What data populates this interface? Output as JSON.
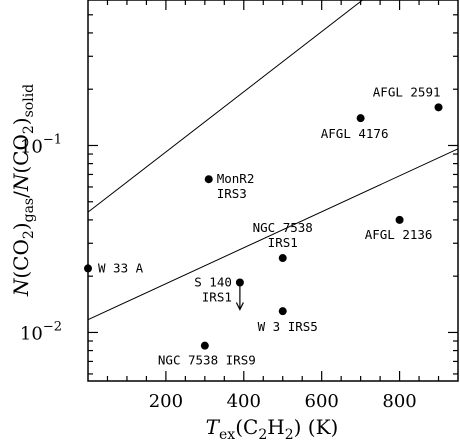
{
  "chart_data": {
    "type": "scatter",
    "title": "",
    "x_axis": {
      "label_main": "T",
      "label_sub": "ex",
      "label_tail_a": "(C",
      "label_tail_sub": "2",
      "label_tail_b": "H",
      "label_tail_sub2": "2",
      "label_tail_c": ")  (K)",
      "lim": [
        0,
        950
      ],
      "ticks": [
        200,
        400,
        600,
        800
      ],
      "tick_labels": [
        "200",
        "400",
        "600",
        "800"
      ],
      "scale": "linear"
    },
    "y_axis": {
      "label_parts": [
        "N",
        "(CO",
        "2",
        ")",
        "gas",
        "/",
        "N",
        "(CO",
        "2",
        ")",
        "solid"
      ],
      "lim": [
        0.0055,
        0.6
      ],
      "scale": "log",
      "major_ticks": [
        0.01,
        0.1
      ],
      "major_tick_labels": [
        {
          "base": "10",
          "exp": "−2"
        },
        {
          "base": "10",
          "exp": "−1"
        }
      ]
    },
    "points": [
      {
        "name": "W 33 A",
        "x": 0,
        "y": 0.022
      },
      {
        "name": "MonR2 IRS3",
        "x": 310,
        "y": 0.066
      },
      {
        "name": "NGC 7538 IRS1",
        "x": 500,
        "y": 0.025
      },
      {
        "name": "S 140 IRS1",
        "x": 390,
        "y": 0.0185,
        "upper_limit": true
      },
      {
        "name": "W 3 IRS5",
        "x": 500,
        "y": 0.013
      },
      {
        "name": "NGC 7538 IRS9",
        "x": 300,
        "y": 0.0085
      },
      {
        "name": "AFGL 4176",
        "x": 700,
        "y": 0.14
      },
      {
        "name": "AFGL 2591",
        "x": 900,
        "y": 0.16
      },
      {
        "name": "AFGL 2136",
        "x": 800,
        "y": 0.04
      }
    ],
    "point_labels": [
      {
        "for": "W 33 A",
        "lines": [
          "W 33 A"
        ],
        "anchor": "start",
        "dx": 10,
        "dy": 4
      },
      {
        "for": "MonR2 IRS3",
        "lines": [
          "MonR2",
          "IRS3"
        ],
        "anchor": "start",
        "dx": 8,
        "dy": 4
      },
      {
        "for": "NGC 7538 IRS1",
        "lines": [
          "NGC 7538",
          "IRS1"
        ],
        "anchor": "middle",
        "dx": 0,
        "dy": -26
      },
      {
        "for": "S 140 IRS1",
        "lines": [
          "S 140",
          "IRS1"
        ],
        "anchor": "end",
        "dx": -8,
        "dy": 4
      },
      {
        "for": "W 3 IRS5",
        "lines": [
          "W 3 IRS5"
        ],
        "anchor": "middle",
        "dx": 5,
        "dy": 20
      },
      {
        "for": "NGC 7538 IRS9",
        "lines": [
          "NGC 7538 IRS9"
        ],
        "anchor": "middle",
        "dx": 2,
        "dy": 19
      },
      {
        "for": "AFGL 4176",
        "lines": [
          "AFGL 4176"
        ],
        "anchor": "middle",
        "dx": -6,
        "dy": 20
      },
      {
        "for": "AFGL 2591",
        "lines": [
          "AFGL 2591"
        ],
        "anchor": "end",
        "dx": 2,
        "dy": -11
      },
      {
        "for": "AFGL 2136",
        "lines": [
          "AFGL 2136"
        ],
        "anchor": "middle",
        "dx": -1,
        "dy": 19
      }
    ],
    "lines": [
      {
        "name": "upper-curve",
        "x1": 0,
        "y1": 0.044,
        "x2": 705,
        "y2": 0.6
      },
      {
        "name": "lower-curve",
        "x1": 0,
        "y1": 0.0117,
        "x2": 950,
        "y2": 0.096
      }
    ]
  }
}
